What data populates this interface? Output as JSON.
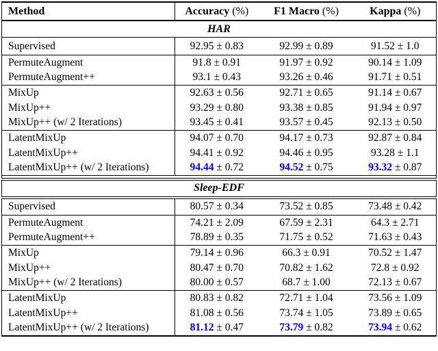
{
  "colors": {
    "background": "#ffffff",
    "text": "#000000",
    "highlight_blue": "#0000ee",
    "rule": "#000000"
  },
  "symbols": {
    "plus_minus": "±"
  },
  "header": {
    "method_label": "Method",
    "metrics": [
      {
        "name": "Accuracy",
        "unit": "(%)"
      },
      {
        "name": "F1 Macro",
        "unit": "(%)"
      },
      {
        "name": "Kappa",
        "unit": "(%)"
      }
    ]
  },
  "sections": [
    {
      "title": "HAR",
      "groups": [
        {
          "rows": [
            {
              "method": "Supervised",
              "cells": [
                {
                  "value": "92.95",
                  "pm": "0.83",
                  "highlight": false
                },
                {
                  "value": "92.99",
                  "pm": "0.89",
                  "highlight": false
                },
                {
                  "value": "91.52",
                  "pm": "1.0",
                  "highlight": false
                }
              ]
            }
          ]
        },
        {
          "rows": [
            {
              "method": "PermuteAugment",
              "cells": [
                {
                  "value": "91.8",
                  "pm": "0.91",
                  "highlight": false
                },
                {
                  "value": "91.97",
                  "pm": "0.92",
                  "highlight": false
                },
                {
                  "value": "90.14",
                  "pm": "1.09",
                  "highlight": false
                }
              ]
            },
            {
              "method": "PermuteAugment++",
              "cells": [
                {
                  "value": "93.1",
                  "pm": "0.43",
                  "highlight": false
                },
                {
                  "value": "93.26",
                  "pm": "0.46",
                  "highlight": false
                },
                {
                  "value": "91.71",
                  "pm": "0.51",
                  "highlight": false
                }
              ]
            }
          ]
        },
        {
          "rows": [
            {
              "method": "MixUp",
              "cells": [
                {
                  "value": "92.63",
                  "pm": "0.56",
                  "highlight": false
                },
                {
                  "value": "92.71",
                  "pm": "0.65",
                  "highlight": false
                },
                {
                  "value": "91.14",
                  "pm": "0.67",
                  "highlight": false
                }
              ]
            },
            {
              "method": "MixUp++",
              "cells": [
                {
                  "value": "93.29",
                  "pm": "0.80",
                  "highlight": false
                },
                {
                  "value": "93.38",
                  "pm": "0.85",
                  "highlight": false
                },
                {
                  "value": "91.94",
                  "pm": "0.97",
                  "highlight": false
                }
              ]
            },
            {
              "method": "MixUp++ (w/ 2 Iterations)",
              "cells": [
                {
                  "value": "93.45",
                  "pm": "0.41",
                  "highlight": false
                },
                {
                  "value": "93.57",
                  "pm": "0.45",
                  "highlight": false
                },
                {
                  "value": "92.13",
                  "pm": "0.50",
                  "highlight": false
                }
              ]
            }
          ]
        },
        {
          "rows": [
            {
              "method": "LatentMixUp",
              "cells": [
                {
                  "value": "94.07",
                  "pm": "0.70",
                  "highlight": false
                },
                {
                  "value": "94.17",
                  "pm": "0.73",
                  "highlight": false
                },
                {
                  "value": "92.87",
                  "pm": "0.84",
                  "highlight": false
                }
              ]
            },
            {
              "method": "LatentMixUp++",
              "cells": [
                {
                  "value": "94.41",
                  "pm": "0.92",
                  "highlight": false
                },
                {
                  "value": "94.46",
                  "pm": "0.95",
                  "highlight": false
                },
                {
                  "value": "93.28",
                  "pm": "1.1",
                  "highlight": false
                }
              ]
            },
            {
              "method": "LatentMixUp++  (w/ 2 Iterations)",
              "cells": [
                {
                  "value": "94.44",
                  "pm": "0.72",
                  "highlight": true
                },
                {
                  "value": "94.52",
                  "pm": "0.75",
                  "highlight": true
                },
                {
                  "value": "93.32",
                  "pm": "0.87",
                  "highlight": true
                }
              ]
            }
          ]
        }
      ]
    },
    {
      "title": "Sleep-EDF",
      "groups": [
        {
          "rows": [
            {
              "method": "Supervised",
              "cells": [
                {
                  "value": "80.57",
                  "pm": "0.34",
                  "highlight": false
                },
                {
                  "value": "73.52",
                  "pm": "0.85",
                  "highlight": false
                },
                {
                  "value": "73.48",
                  "pm": "0.42",
                  "highlight": false
                }
              ]
            }
          ]
        },
        {
          "rows": [
            {
              "method": "PermuteAugment",
              "cells": [
                {
                  "value": "74.21",
                  "pm": "2.09",
                  "highlight": false
                },
                {
                  "value": "67.59",
                  "pm": "2.31",
                  "highlight": false
                },
                {
                  "value": "64.3",
                  "pm": "2.71",
                  "highlight": false
                }
              ]
            },
            {
              "method": "PermuteAugment++",
              "cells": [
                {
                  "value": "78.89",
                  "pm": "0.35",
                  "highlight": false
                },
                {
                  "value": "71.75",
                  "pm": "0.52",
                  "highlight": false
                },
                {
                  "value": "71.63",
                  "pm": "0.43",
                  "highlight": false
                }
              ]
            }
          ]
        },
        {
          "rows": [
            {
              "method": "MixUp",
              "cells": [
                {
                  "value": "79.14",
                  "pm": "0.96",
                  "highlight": false
                },
                {
                  "value": "66.3",
                  "pm": "0.91",
                  "highlight": false
                },
                {
                  "value": "70.52",
                  "pm": "1.47",
                  "highlight": false
                }
              ]
            },
            {
              "method": "MixUp++",
              "cells": [
                {
                  "value": "80.47",
                  "pm": "0.70",
                  "highlight": false
                },
                {
                  "value": "70.82",
                  "pm": "1.62",
                  "highlight": false
                },
                {
                  "value": "72.8",
                  "pm": "0.92",
                  "highlight": false
                }
              ]
            },
            {
              "method": "MixUp++  (w/ 2 Iterations)",
              "cells": [
                {
                  "value": "80.00",
                  "pm": "0.57",
                  "highlight": false
                },
                {
                  "value": "68.7",
                  "pm": "1.00",
                  "highlight": false
                },
                {
                  "value": "72.13",
                  "pm": "0.67",
                  "highlight": false
                }
              ]
            }
          ]
        },
        {
          "rows": [
            {
              "method": "LatentMixUp",
              "cells": [
                {
                  "value": "80.83",
                  "pm": "0.82",
                  "highlight": false
                },
                {
                  "value": "72.71",
                  "pm": "1.04",
                  "highlight": false
                },
                {
                  "value": "73.56",
                  "pm": "1.09",
                  "highlight": false
                }
              ]
            },
            {
              "method": "LatentMixUp++",
              "cells": [
                {
                  "value": "81.08",
                  "pm": "0.56",
                  "highlight": false
                },
                {
                  "value": "73.74",
                  "pm": "1.05",
                  "highlight": false
                },
                {
                  "value": "73.89",
                  "pm": "0.65",
                  "highlight": false
                }
              ]
            },
            {
              "method": "LatentMixUp++ (w/ 2 Iterations)",
              "cells": [
                {
                  "value": "81.12",
                  "pm": "0.47",
                  "highlight": true
                },
                {
                  "value": "73.79",
                  "pm": "0.82",
                  "highlight": true
                },
                {
                  "value": "73.94",
                  "pm": "0.62",
                  "highlight": true
                }
              ]
            }
          ]
        }
      ]
    }
  ]
}
